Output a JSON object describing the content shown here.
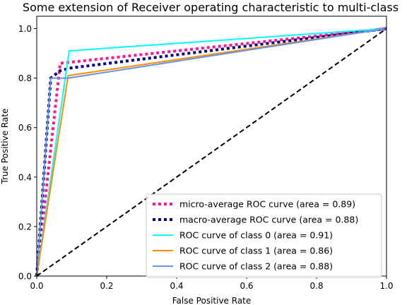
{
  "chart_data": {
    "type": "line",
    "title": "Some extension of Receiver operating characteristic to multi-class",
    "xlabel": "False Positive Rate",
    "ylabel": "True Positive Rate",
    "xlim": [
      0.0,
      1.0
    ],
    "ylim": [
      0.0,
      1.05
    ],
    "x_ticks": [
      "0.0",
      "0.2",
      "0.4",
      "0.6",
      "0.8",
      "1.0"
    ],
    "y_ticks": [
      "0.0",
      "0.2",
      "0.4",
      "0.6",
      "0.8",
      "1.0"
    ],
    "grid": false,
    "legend_position": "lower-right",
    "series": [
      {
        "name": "micro-average ROC curve (area = 0.89)",
        "color": "#ff1493",
        "style": "dotted",
        "x": [
          0.0,
          0.067,
          1.0
        ],
        "y": [
          0.0,
          0.86,
          1.0
        ]
      },
      {
        "name": "macro-average ROC curve (area = 0.88)",
        "color": "#000080",
        "style": "dotted",
        "x": [
          0.0,
          0.04,
          0.067,
          0.093,
          1.0
        ],
        "y": [
          0.0,
          0.8,
          0.83,
          0.84,
          1.0
        ]
      },
      {
        "name": "ROC curve of class 0 (area = 0.91)",
        "color": "#00ffff",
        "style": "solid",
        "x": [
          0.0,
          0.093,
          1.0
        ],
        "y": [
          0.0,
          0.91,
          1.0
        ]
      },
      {
        "name": "ROC curve of class 1 (area = 0.86)",
        "color": "#ff8c00",
        "style": "solid",
        "x": [
          0.0,
          0.09,
          1.0
        ],
        "y": [
          0.0,
          0.81,
          1.0
        ]
      },
      {
        "name": "ROC curve of class 2 (area = 0.88)",
        "color": "#6495ed",
        "style": "solid",
        "x": [
          0.0,
          0.04,
          0.09,
          1.0
        ],
        "y": [
          0.0,
          0.8,
          0.8,
          1.0
        ]
      },
      {
        "color": "#000000",
        "style": "dashed",
        "x": [
          0.0,
          1.0
        ],
        "y": [
          0.0,
          1.0
        ]
      }
    ]
  }
}
